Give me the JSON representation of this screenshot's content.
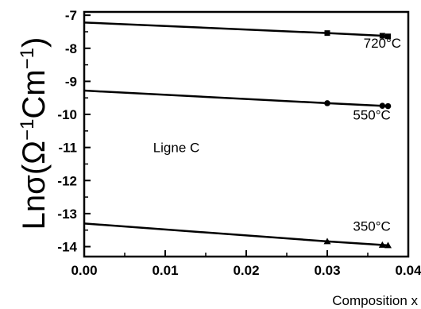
{
  "chart_data": {
    "type": "line",
    "title": "",
    "xlabel": "Composition x",
    "ylabel": {
      "prefix": "Lnσ(Ω",
      "sup1": "−1",
      "middle": "Cm",
      "sup2": "−1",
      "suffix": ")"
    },
    "xlim": [
      0,
      0.04
    ],
    "ylim": [
      -14.3,
      -6.9
    ],
    "xticks": [
      0.0,
      0.01,
      0.02,
      0.03,
      0.04
    ],
    "xtick_labels": [
      "0.00",
      "0.01",
      "0.02",
      "0.03",
      "0.04"
    ],
    "yticks": [
      -14,
      -13,
      -12,
      -11,
      -10,
      -9,
      -8,
      -7
    ],
    "ytick_labels": [
      "-14",
      "-13",
      "-12",
      "-11",
      "-10",
      "-9",
      "-8",
      "-7"
    ],
    "grid": false,
    "annotation": "Ligne C",
    "annotation_at": [
      0.0085,
      -11.0
    ],
    "series": [
      {
        "name": "720°C",
        "marker": "square",
        "x": [
          0.0,
          0.03,
          0.0368,
          0.0375
        ],
        "y": [
          -7.22,
          -7.54,
          -7.62,
          -7.64
        ],
        "label_at": [
          0.0368,
          -7.98
        ]
      },
      {
        "name": "550°C",
        "marker": "circle",
        "x": [
          0.0,
          0.03,
          0.0368,
          0.0375
        ],
        "y": [
          -9.28,
          -9.66,
          -9.74,
          -9.75
        ],
        "label_at": [
          0.0355,
          -10.15
        ]
      },
      {
        "name": "350°C",
        "marker": "triangle",
        "x": [
          0.0,
          0.03,
          0.0368,
          0.0375
        ],
        "y": [
          -13.3,
          -13.84,
          -13.95,
          -13.96
        ],
        "label_at": [
          0.0355,
          -13.52
        ]
      }
    ]
  }
}
